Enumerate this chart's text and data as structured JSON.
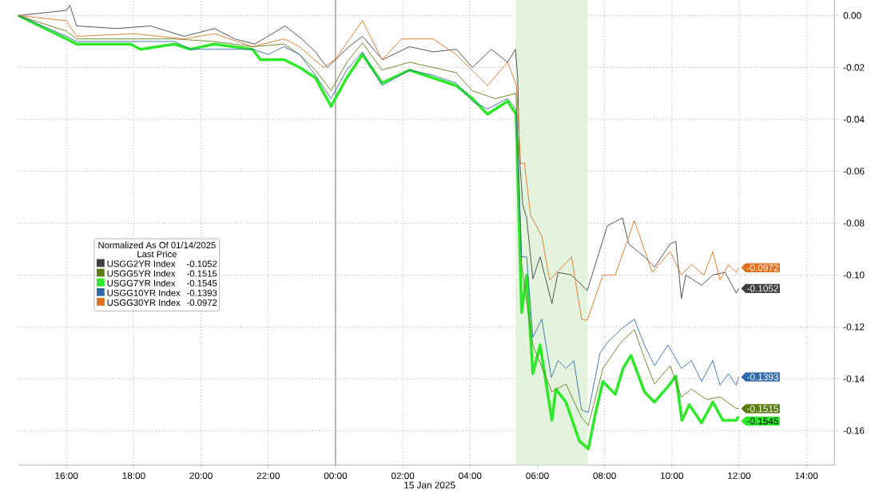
{
  "chart_data": {
    "type": "line",
    "legend_title": "Normalized As Of 01/14/2025",
    "xlabel": "15 Jan 2025",
    "annotations": [
      "Last Price",
      {
        "text": "-0.1052",
        "x": "2025-01-15T11:59",
        "y": -0.1052
      },
      {
        "text": "-0.1515",
        "x": "2025-01-15T11:59",
        "y": -0.1515
      },
      {
        "text": "-0.1545",
        "x": "2025-01-15T11:59",
        "y": -0.1545
      },
      {
        "text": "-0.1393",
        "x": "2025-01-15T11:59",
        "y": -0.1393
      },
      {
        "text": "-0.0972",
        "x": "2025-01-15T11:59",
        "y": -0.0972
      }
    ],
    "series": [
      {
        "name": "USGG2YR Index",
        "color": "#3f3f3f",
        "x": [
          "2025-01-14T14:34",
          "2025-01-14T16:00",
          "2025-01-14T16:06",
          "2025-01-14T16:18",
          "2025-01-14T17:30",
          "2025-01-14T18:30",
          "2025-01-14T19:30",
          "2025-01-14T20:24",
          "2025-01-14T21:00",
          "2025-01-14T21:36",
          "2025-01-14T22:30",
          "2025-01-14T23:00",
          "2025-01-14T23:24",
          "2025-01-14T23:45",
          "2025-01-15T00:00",
          "2025-01-15T00:24",
          "2025-01-15T00:48",
          "2025-01-15T01:24",
          "2025-01-15T02:12",
          "2025-01-15T02:54",
          "2025-01-15T03:36",
          "2025-01-15T04:04",
          "2025-01-15T04:38",
          "2025-01-15T05:07",
          "2025-01-15T05:21",
          "2025-01-15T05:25",
          "2025-01-15T05:28",
          "2025-01-15T05:34",
          "2025-01-15T05:41",
          "2025-01-15T05:52",
          "2025-01-15T06:05",
          "2025-01-15T06:26",
          "2025-01-15T06:37",
          "2025-01-15T07:01",
          "2025-01-15T07:29",
          "2025-01-15T08:05",
          "2025-01-15T08:32",
          "2025-01-15T08:43",
          "2025-01-15T09:11",
          "2025-01-15T09:29",
          "2025-01-15T09:57",
          "2025-01-15T10:07",
          "2025-01-15T10:17",
          "2025-01-15T10:25",
          "2025-01-15T10:53",
          "2025-01-15T11:13",
          "2025-01-15T11:35",
          "2025-01-15T11:55",
          "2025-01-15T11:59"
        ],
        "values": [
          0,
          0.002,
          0.004,
          -0.004,
          -0.005,
          -0.004,
          -0.008,
          -0.005,
          -0.009,
          -0.011,
          -0.004,
          -0.009,
          -0.014,
          -0.02,
          -0.017,
          -0.012,
          -0.008,
          -0.017,
          -0.012,
          -0.014,
          -0.013,
          -0.02,
          -0.013,
          -0.018,
          -0.013,
          -0.024,
          -0.054,
          -0.073,
          -0.078,
          -0.1015,
          -0.093,
          -0.111,
          -0.099,
          -0.1,
          -0.106,
          -0.081,
          -0.078,
          -0.088,
          -0.093,
          -0.097,
          -0.088,
          -0.087,
          -0.109,
          -0.1,
          -0.104,
          -0.1,
          -0.099,
          -0.107,
          -0.1052
        ]
      },
      {
        "name": "USGG5YR Index",
        "color": "#5b7c12",
        "x": [
          "2025-01-14T14:34",
          "2025-01-14T16:00",
          "2025-01-14T16:18",
          "2025-01-14T19:13",
          "2025-01-14T20:23",
          "2025-01-14T21:32",
          "2025-01-14T22:28",
          "2025-01-14T22:56",
          "2025-01-14T23:24",
          "2025-01-14T23:52",
          "2025-01-15T00:20",
          "2025-01-15T00:48",
          "2025-01-15T01:23",
          "2025-01-15T02:12",
          "2025-01-15T02:54",
          "2025-01-15T03:35",
          "2025-01-15T04:04",
          "2025-01-15T04:45",
          "2025-01-15T05:22",
          "2025-01-15T05:32",
          "2025-01-15T05:52",
          "2025-01-15T06:26",
          "2025-01-15T06:51",
          "2025-01-15T07:19",
          "2025-01-15T07:31",
          "2025-01-15T07:57",
          "2025-01-15T08:29",
          "2025-01-15T08:53",
          "2025-01-15T09:11",
          "2025-01-15T09:29",
          "2025-01-15T09:57",
          "2025-01-15T10:17",
          "2025-01-15T10:35",
          "2025-01-15T11:02",
          "2025-01-15T11:26",
          "2025-01-15T11:55",
          "2025-01-15T11:59"
        ],
        "values": [
          0,
          -0.006,
          -0.009,
          -0.009,
          -0.01,
          -0.012,
          -0.011,
          -0.015,
          -0.021,
          -0.029,
          -0.018,
          -0.0105,
          -0.021,
          -0.018,
          -0.02,
          -0.022,
          -0.029,
          -0.032,
          -0.03,
          -0.096,
          -0.127,
          -0.145,
          -0.142,
          -0.155,
          -0.158,
          -0.136,
          -0.126,
          -0.121,
          -0.132,
          -0.142,
          -0.135,
          -0.147,
          -0.144,
          -0.148,
          -0.147,
          -0.1515,
          -0.1515
        ]
      },
      {
        "name": "USGG7YR Index",
        "color": "#2ee82a",
        "x": [
          "2025-01-14T14:34",
          "2025-01-14T16:00",
          "2025-01-14T16:18",
          "2025-01-14T17:54",
          "2025-01-14T18:12",
          "2025-01-14T19:13",
          "2025-01-14T19:41",
          "2025-01-14T20:23",
          "2025-01-14T21:32",
          "2025-01-14T21:46",
          "2025-01-14T22:28",
          "2025-01-14T22:56",
          "2025-01-14T23:24",
          "2025-01-14T23:52",
          "2025-01-15T00:20",
          "2025-01-15T00:48",
          "2025-01-15T01:23",
          "2025-01-15T02:12",
          "2025-01-15T02:54",
          "2025-01-15T03:35",
          "2025-01-15T04:04",
          "2025-01-15T04:31",
          "2025-01-15T05:07",
          "2025-01-15T05:22",
          "2025-01-15T05:32",
          "2025-01-15T05:41",
          "2025-01-15T05:52",
          "2025-01-15T06:05",
          "2025-01-15T06:26",
          "2025-01-15T06:33",
          "2025-01-15T06:51",
          "2025-01-15T07:15",
          "2025-01-15T07:31",
          "2025-01-15T07:43",
          "2025-01-15T07:57",
          "2025-01-15T08:19",
          "2025-01-15T08:33",
          "2025-01-15T08:47",
          "2025-01-15T09:11",
          "2025-01-15T09:29",
          "2025-01-15T09:53",
          "2025-01-15T10:07",
          "2025-01-15T10:18",
          "2025-01-15T10:31",
          "2025-01-15T10:53",
          "2025-01-15T11:13",
          "2025-01-15T11:31",
          "2025-01-15T11:55",
          "2025-01-15T11:59"
        ],
        "values": [
          0,
          -0.009,
          -0.011,
          -0.011,
          -0.013,
          -0.011,
          -0.013,
          -0.011,
          -0.013,
          -0.017,
          -0.017,
          -0.02,
          -0.024,
          -0.035,
          -0.024,
          -0.015,
          -0.026,
          -0.021,
          -0.024,
          -0.027,
          -0.032,
          -0.038,
          -0.033,
          -0.038,
          -0.1145,
          -0.1,
          -0.138,
          -0.127,
          -0.156,
          -0.144,
          -0.149,
          -0.164,
          -0.167,
          -0.154,
          -0.141,
          -0.146,
          -0.136,
          -0.131,
          -0.145,
          -0.149,
          -0.143,
          -0.139,
          -0.156,
          -0.15,
          -0.157,
          -0.149,
          -0.156,
          -0.156,
          -0.1545
        ]
      },
      {
        "name": "USGG10YR Index",
        "color": "#2f6aa8",
        "x": [
          "2025-01-14T14:34",
          "2025-01-14T16:00",
          "2025-01-14T16:18",
          "2025-01-14T19:13",
          "2025-01-14T19:41",
          "2025-01-14T21:32",
          "2025-01-14T22:00",
          "2025-01-14T22:28",
          "2025-01-14T22:56",
          "2025-01-14T23:24",
          "2025-01-14T23:52",
          "2025-01-15T00:20",
          "2025-01-15T00:48",
          "2025-01-15T01:23",
          "2025-01-15T02:12",
          "2025-01-15T02:54",
          "2025-01-15T03:35",
          "2025-01-15T04:04",
          "2025-01-15T04:31",
          "2025-01-15T05:07",
          "2025-01-15T05:22",
          "2025-01-15T05:32",
          "2025-01-15T05:41",
          "2025-01-15T05:52",
          "2025-01-15T06:08",
          "2025-01-15T06:25",
          "2025-01-15T06:37",
          "2025-01-15T06:51",
          "2025-01-15T07:05",
          "2025-01-15T07:19",
          "2025-01-15T07:31",
          "2025-01-15T07:52",
          "2025-01-15T08:05",
          "2025-01-15T08:29",
          "2025-01-15T08:53",
          "2025-01-15T09:11",
          "2025-01-15T09:29",
          "2025-01-15T09:53",
          "2025-01-15T10:17",
          "2025-01-15T10:35",
          "2025-01-15T10:53",
          "2025-01-15T11:13",
          "2025-01-15T11:26",
          "2025-01-15T11:41",
          "2025-01-15T11:55",
          "2025-01-15T11:59"
        ],
        "values": [
          0,
          -0.008,
          -0.01,
          -0.01,
          -0.013,
          -0.013,
          -0.015,
          -0.012,
          -0.015,
          -0.023,
          -0.032,
          -0.021,
          -0.014,
          -0.027,
          -0.021,
          -0.023,
          -0.026,
          -0.033,
          -0.036,
          -0.032,
          -0.036,
          -0.093,
          -0.093,
          -0.124,
          -0.117,
          -0.1395,
          -0.133,
          -0.136,
          -0.133,
          -0.152,
          -0.153,
          -0.13,
          -0.126,
          -0.121,
          -0.117,
          -0.127,
          -0.135,
          -0.127,
          -0.136,
          -0.133,
          -0.141,
          -0.133,
          -0.1425,
          -0.138,
          -0.1425,
          -0.1393
        ]
      },
      {
        "name": "USGG30YR Index",
        "color": "#e0701f",
        "x": [
          "2025-01-14T14:34",
          "2025-01-14T16:00",
          "2025-01-14T16:18",
          "2025-01-14T18:00",
          "2025-01-14T19:30",
          "2025-01-14T20:24",
          "2025-01-14T21:32",
          "2025-01-14T22:28",
          "2025-01-14T22:56",
          "2025-01-14T23:38",
          "2025-01-14T23:59",
          "2025-01-15T00:48",
          "2025-01-15T01:23",
          "2025-01-15T01:58",
          "2025-01-15T02:54",
          "2025-01-15T03:35",
          "2025-01-15T04:31",
          "2025-01-15T05:07",
          "2025-01-15T05:23",
          "2025-01-15T05:30",
          "2025-01-15T05:37",
          "2025-01-15T05:48",
          "2025-01-15T06:08",
          "2025-01-15T06:22",
          "2025-01-15T07:01",
          "2025-01-15T07:19",
          "2025-01-15T07:29",
          "2025-01-15T07:57",
          "2025-01-15T08:19",
          "2025-01-15T08:53",
          "2025-01-15T09:25",
          "2025-01-15T09:57",
          "2025-01-15T10:17",
          "2025-01-15T10:35",
          "2025-01-15T10:57",
          "2025-01-15T11:13",
          "2025-01-15T11:26",
          "2025-01-15T11:41",
          "2025-01-15T11:55",
          "2025-01-15T11:59"
        ],
        "values": [
          0,
          -0.002,
          -0.008,
          -0.007,
          -0.009,
          -0.007,
          -0.012,
          -0.009,
          -0.012,
          -0.02,
          -0.017,
          -0.002,
          -0.017,
          -0.009,
          -0.009,
          -0.015,
          -0.027,
          -0.018,
          -0.027,
          -0.057,
          -0.057,
          -0.077,
          -0.085,
          -0.102,
          -0.093,
          -0.117,
          -0.1175,
          -0.1,
          -0.1,
          -0.079,
          -0.099,
          -0.091,
          -0.1,
          -0.096,
          -0.1,
          -0.091,
          -0.102,
          -0.096,
          -0.099,
          -0.0972
        ]
      }
    ],
    "xlim": [
      "2025-01-14T14:34",
      "2025-01-15T14:50"
    ],
    "ylim": [
      -0.1733,
      0.006
    ],
    "xticks": [
      {
        "value": "2025-01-14T16:00",
        "label": "16:00"
      },
      {
        "value": "2025-01-14T18:00",
        "label": "18:00"
      },
      {
        "value": "2025-01-14T20:00",
        "label": "20:00"
      },
      {
        "value": "2025-01-14T22:00",
        "label": "22:00"
      },
      {
        "value": "2025-01-15T00:00",
        "label": "00:00"
      },
      {
        "value": "2025-01-15T02:00",
        "label": "02:00"
      },
      {
        "value": "2025-01-15T04:00",
        "label": "04:00"
      },
      {
        "value": "2025-01-15T06:00",
        "label": "06:00"
      },
      {
        "value": "2025-01-15T08:00",
        "label": "08:00"
      },
      {
        "value": "2025-01-15T10:00",
        "label": "10:00"
      },
      {
        "value": "2025-01-15T12:00",
        "label": "12:00"
      },
      {
        "value": "2025-01-15T14:00",
        "label": "14:00"
      }
    ],
    "yticks": [
      {
        "value": 0,
        "label": "0.00"
      },
      {
        "value": -0.02,
        "label": "-0.02"
      },
      {
        "value": -0.04,
        "label": "-0.04"
      },
      {
        "value": -0.06,
        "label": "-0.06"
      },
      {
        "value": -0.08,
        "label": "-0.08"
      },
      {
        "value": -0.1,
        "label": "-0.10"
      },
      {
        "value": -0.12,
        "label": "-0.12"
      },
      {
        "value": -0.14,
        "label": "-0.14"
      },
      {
        "value": -0.16,
        "label": "-0.16"
      }
    ],
    "ref_lines": [
      {
        "axis": "x",
        "value": "2025-01-15T00:00",
        "color": "#606060"
      }
    ],
    "bands": [
      {
        "axis": "x",
        "from": "2025-01-15T05:21",
        "to": "2025-01-15T07:30",
        "color": "#e3f3dd"
      }
    ],
    "grid": true,
    "legend": "left",
    "line_style": "solid"
  }
}
